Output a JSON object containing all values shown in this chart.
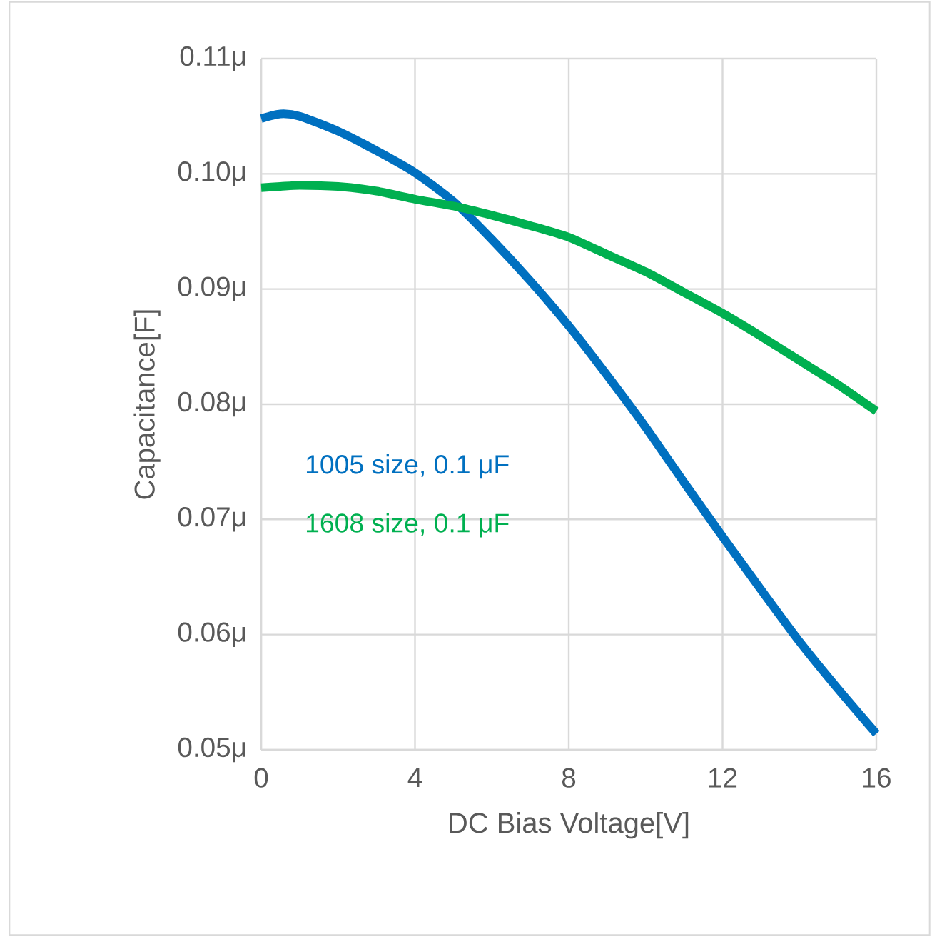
{
  "chart_data": {
    "type": "line",
    "xlabel": "DC Bias Voltage[V]",
    "ylabel": "Capacitance[F]",
    "x": [
      0,
      0.5,
      1,
      2,
      3,
      4,
      5,
      6,
      7,
      8,
      9,
      10,
      11,
      12,
      13,
      14,
      15,
      16
    ],
    "series": [
      {
        "name": "1005 size, 0.1 μF",
        "color": "#0070c0",
        "values": [
          0.1048,
          0.1052,
          0.105,
          0.1037,
          0.102,
          0.1001,
          0.0976,
          0.0943,
          0.0907,
          0.0868,
          0.0825,
          0.078,
          0.0732,
          0.0685,
          0.0639,
          0.0594,
          0.0553,
          0.0514
        ]
      },
      {
        "name": "1608 size, 0.1 μF",
        "color": "#00b050",
        "values": [
          0.0988,
          0.0989,
          0.099,
          0.0989,
          0.0985,
          0.0978,
          0.0972,
          0.0964,
          0.0955,
          0.0945,
          0.093,
          0.0915,
          0.0897,
          0.0879,
          0.0859,
          0.0838,
          0.0817,
          0.0794
        ]
      }
    ],
    "xlim": [
      0,
      16
    ],
    "ylim": [
      0.05,
      0.11
    ],
    "xticks": [
      0,
      4,
      8,
      12,
      16
    ],
    "yticks": [
      {
        "value": 0.05,
        "label": "0.05μ"
      },
      {
        "value": 0.06,
        "label": "0.06μ"
      },
      {
        "value": 0.07,
        "label": "0.07μ"
      },
      {
        "value": 0.08,
        "label": "0.08μ"
      },
      {
        "value": 0.09,
        "label": "0.09μ"
      },
      {
        "value": 0.1,
        "label": "0.10μ"
      },
      {
        "value": 0.11,
        "label": "0.11μ"
      }
    ],
    "grid": true,
    "legend": false,
    "line_style": "solid"
  }
}
